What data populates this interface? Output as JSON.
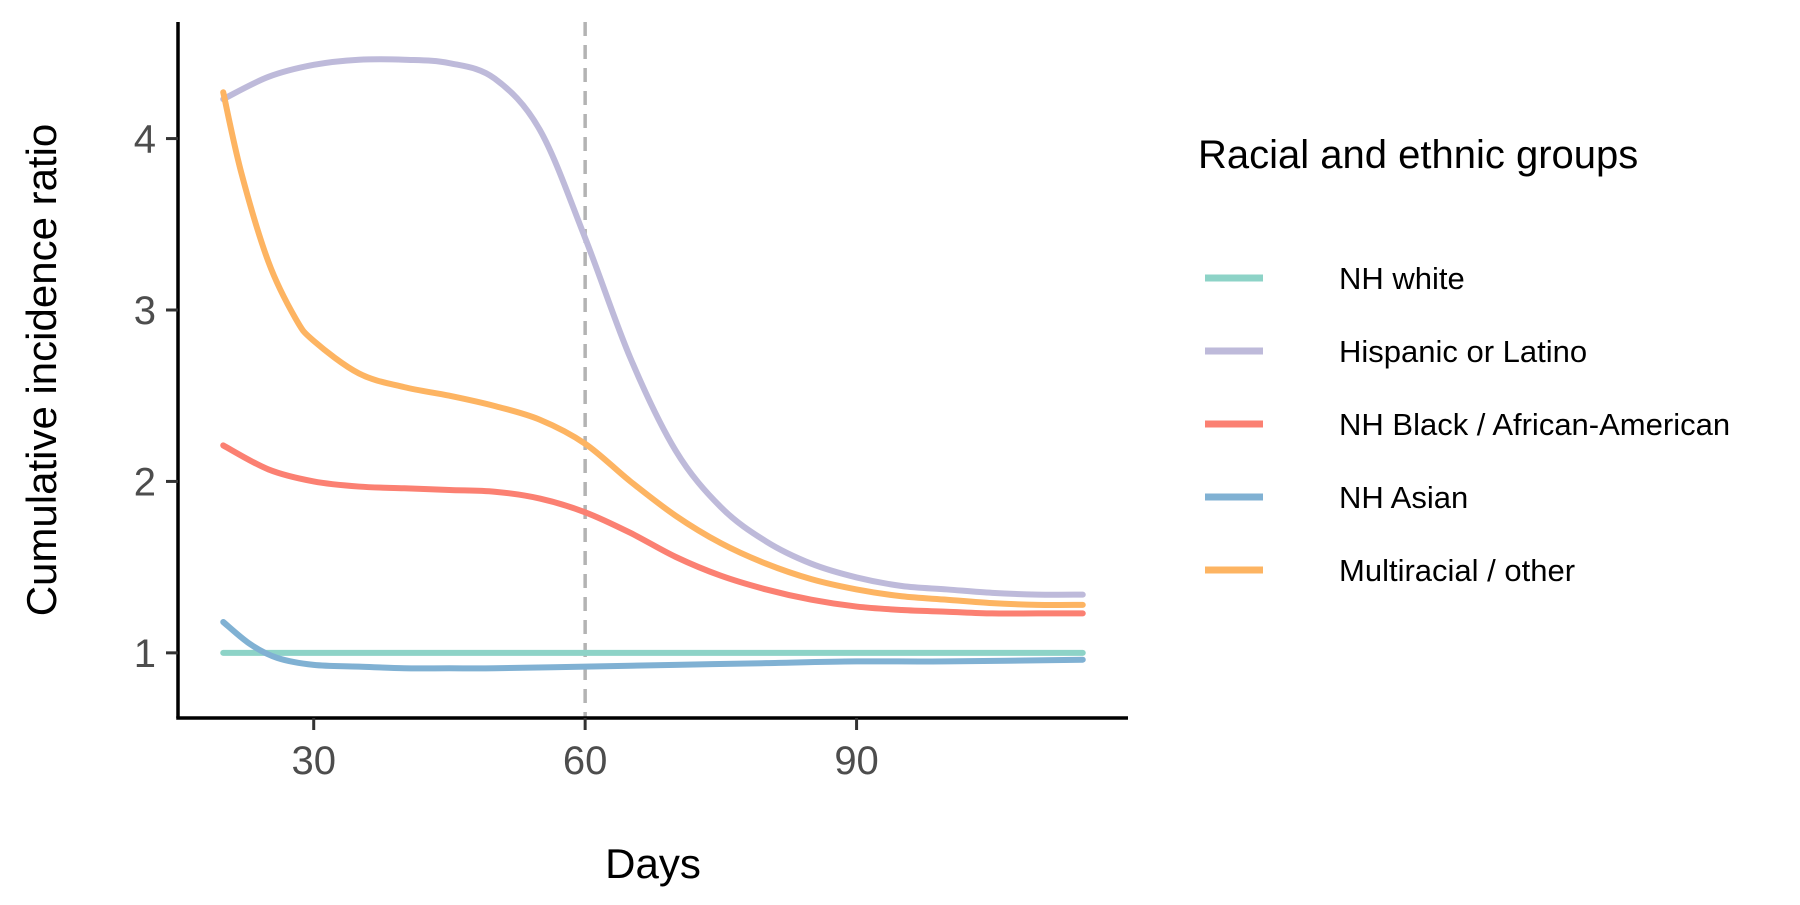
{
  "chart_data": {
    "type": "line",
    "xlabel": "Days",
    "ylabel": "Cumulative incidence ratio",
    "xlim": [
      15,
      120
    ],
    "ylim": [
      0.62,
      4.68
    ],
    "x_ticks": [
      30,
      60,
      90
    ],
    "y_ticks": [
      1,
      2,
      3,
      4
    ],
    "x_tick_labels": [
      "30",
      "60",
      "90"
    ],
    "y_tick_labels": [
      "1",
      "2",
      "3",
      "4"
    ],
    "reference_line": {
      "x": 60,
      "style": "dashed",
      "color": "#b3b3b3"
    },
    "grid": false,
    "legend": {
      "title": "Racial and ethnic groups",
      "position": "right"
    },
    "series": [
      {
        "name": "NH white",
        "color": "#8dd3c7",
        "x": [
          20,
          30,
          45,
          60,
          75,
          90,
          115
        ],
        "y": [
          1.0,
          1.0,
          1.0,
          1.0,
          1.0,
          1.0,
          1.0
        ]
      },
      {
        "name": "Hispanic or Latino",
        "color": "#bebada",
        "x": [
          20,
          25,
          30,
          35,
          40,
          45,
          50,
          55,
          60,
          65,
          70,
          75,
          80,
          85,
          90,
          95,
          100,
          105,
          110,
          115
        ],
        "y": [
          4.23,
          4.36,
          4.43,
          4.46,
          4.46,
          4.44,
          4.35,
          4.05,
          3.42,
          2.72,
          2.18,
          1.85,
          1.65,
          1.52,
          1.44,
          1.39,
          1.37,
          1.35,
          1.34,
          1.34
        ]
      },
      {
        "name": "NH Black / African-American",
        "color": "#fb8072",
        "x": [
          20,
          25,
          30,
          35,
          40,
          45,
          50,
          55,
          60,
          65,
          70,
          75,
          80,
          85,
          90,
          95,
          100,
          105,
          110,
          115
        ],
        "y": [
          2.21,
          2.07,
          2.0,
          1.97,
          1.96,
          1.95,
          1.94,
          1.9,
          1.82,
          1.7,
          1.56,
          1.45,
          1.37,
          1.31,
          1.27,
          1.25,
          1.24,
          1.23,
          1.23,
          1.23
        ]
      },
      {
        "name": "NH Asian",
        "color": "#80b1d3",
        "x": [
          20,
          23,
          26,
          30,
          35,
          40,
          45,
          50,
          60,
          70,
          80,
          90,
          100,
          115
        ],
        "y": [
          1.18,
          1.05,
          0.97,
          0.93,
          0.92,
          0.91,
          0.91,
          0.91,
          0.92,
          0.93,
          0.94,
          0.95,
          0.95,
          0.96
        ]
      },
      {
        "name": "Multiracial / other",
        "color": "#fdb462",
        "x": [
          20,
          22,
          25,
          28,
          30,
          35,
          40,
          45,
          50,
          55,
          60,
          65,
          70,
          75,
          80,
          85,
          90,
          95,
          100,
          105,
          110,
          115
        ],
        "y": [
          4.27,
          3.8,
          3.28,
          2.95,
          2.82,
          2.63,
          2.55,
          2.5,
          2.44,
          2.36,
          2.22,
          2.0,
          1.8,
          1.64,
          1.52,
          1.43,
          1.37,
          1.33,
          1.31,
          1.29,
          1.28,
          1.28
        ]
      }
    ]
  }
}
